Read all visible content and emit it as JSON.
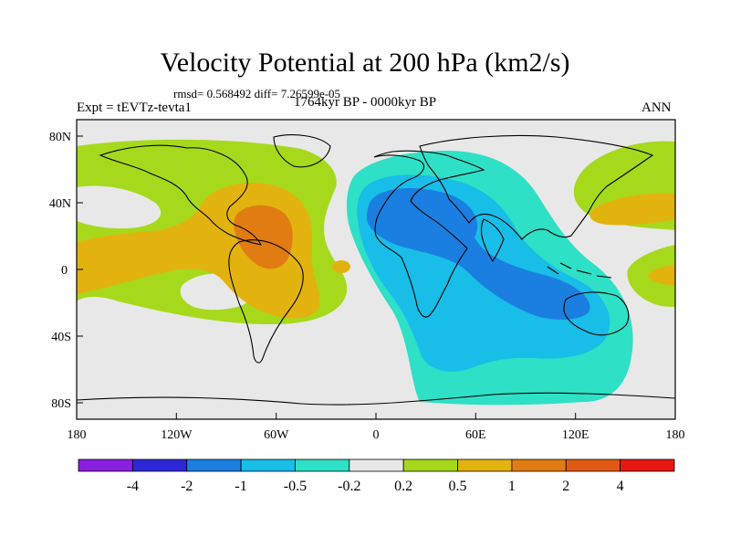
{
  "map": {
    "title": "Velocity Potential at 200 hPa (km2/s)",
    "stats": "rmsd= 0.568492 diff= 7.26599e-05",
    "experiment": "Expt = tEVTz-tevta1",
    "period": "1764kyr BP - 0000kyr BP",
    "season": "ANN",
    "lat_ticks": [
      "80N",
      "40N",
      "0",
      "40S",
      "80S"
    ],
    "lon_ticks": [
      "180",
      "120W",
      "60W",
      "0",
      "60E",
      "120E",
      "180"
    ]
  },
  "colorbar": {
    "labels": [
      "-4",
      "-2",
      "-1",
      "-0.5",
      "-0.2",
      "0.2",
      "0.5",
      "1",
      "2",
      "4"
    ],
    "colors": [
      "#8a1fe0",
      "#2b27d6",
      "#1a7fe0",
      "#18bde8",
      "#2ee0c5",
      "#e8e8e8",
      "#a6d91c",
      "#e2b30e",
      "#e07c12",
      "#e05a14",
      "#e8170f"
    ]
  },
  "colors": {
    "ocean": "#e8e8e8",
    "neg_03": "#2ee0c5",
    "neg_04": "#18bde8",
    "neg_05": "#1a7fe0",
    "pos_02": "#a6d91c",
    "pos_05": "#e2b30e",
    "pos_1": "#e07c12"
  }
}
